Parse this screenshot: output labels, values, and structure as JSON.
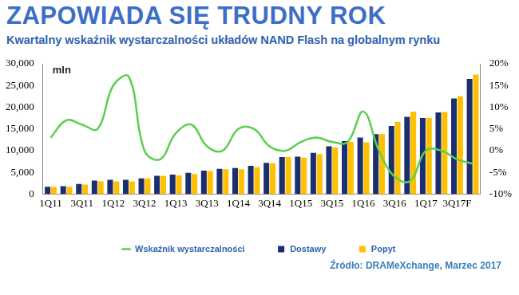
{
  "chart_data": {
    "type": "bar",
    "title": "ZAPOWIADA SIĘ TRUDNY ROK",
    "subtitle": "Kwartalny wskaźnik wystarczalności układów NAND Flash na globalnym rynku",
    "ylabel": "mln",
    "source": "Źródło: DRAMeXchange, Marzec 2017",
    "categories": [
      "1Q11",
      null,
      "3Q11",
      null,
      "1Q12",
      null,
      "3Q12",
      null,
      "1Q13",
      null,
      "3Q13",
      null,
      "1Q14",
      null,
      "3Q14",
      null,
      "1Q15",
      null,
      "3Q15",
      null,
      "1Q16",
      null,
      "3Q16",
      null,
      "1Q17",
      null,
      "3Q17F",
      null
    ],
    "series": [
      {
        "name": "Dostawy",
        "type": "bar",
        "color": "#1b2f6e",
        "values": [
          1700,
          1800,
          2300,
          3100,
          3300,
          3300,
          3600,
          4200,
          4500,
          4900,
          5400,
          5800,
          6000,
          6500,
          7200,
          8500,
          8600,
          9500,
          11000,
          12200,
          13000,
          13800,
          15700,
          17800,
          17500,
          18800,
          22000,
          26500
        ]
      },
      {
        "name": "Popyt",
        "type": "bar",
        "color": "#ffc000",
        "values": [
          1650,
          1700,
          2200,
          2900,
          2900,
          2900,
          3600,
          4200,
          4300,
          4600,
          5300,
          5700,
          5700,
          6200,
          7100,
          8500,
          8400,
          9200,
          10700,
          12000,
          11900,
          13800,
          16600,
          19000,
          17500,
          18900,
          22500,
          27500
        ]
      },
      {
        "name": "Wskaźnik wystarczalności",
        "type": "line",
        "axis": "y2",
        "color": "#5ccf4f",
        "values": [
          3,
          7,
          6,
          5,
          15,
          17,
          0,
          -2,
          4,
          6,
          1,
          0,
          5,
          5,
          1,
          0,
          2,
          3,
          2,
          2,
          9,
          0,
          -6,
          -7,
          0,
          0,
          -2,
          -3
        ]
      }
    ],
    "ylim": [
      0,
      30000
    ],
    "yticks": [
      0,
      {
        "value": 5000,
        "label": "5,000"
      },
      {
        "value": 10000,
        "label": "10,000"
      },
      {
        "value": 15000,
        "label": "15,000"
      },
      {
        "value": 20000,
        "label": "20,000"
      },
      {
        "value": 25000,
        "label": "25,000"
      },
      {
        "value": 30000,
        "label": "30,000"
      }
    ],
    "y2lim": [
      -10,
      20
    ],
    "y2ticks": [
      {
        "value": -10,
        "label": "-10%"
      },
      {
        "value": -5,
        "label": "-5%"
      },
      {
        "value": 0,
        "label": "0%"
      },
      {
        "value": 5,
        "label": "5%"
      },
      {
        "value": 10,
        "label": "10%"
      },
      {
        "value": 15,
        "label": "15%"
      },
      {
        "value": 20,
        "label": "20%"
      }
    ],
    "grid": false,
    "legend": "bottom"
  }
}
